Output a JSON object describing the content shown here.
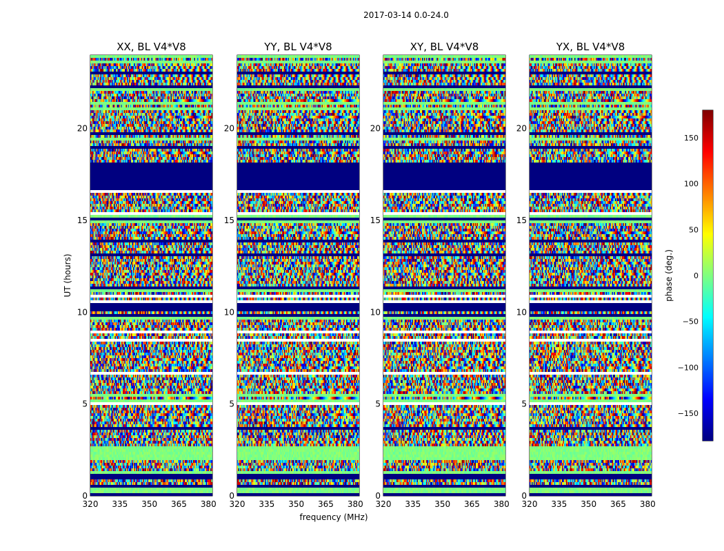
{
  "figure": {
    "suptitle": "2017-03-14 0.0-24.0",
    "xlabel": "frequency (MHz)",
    "ylabel": "UT (hours)"
  },
  "chart_data": {
    "type": "heatmap",
    "panel_titles": [
      "XX, BL V4*V8",
      "YY, BL V4*V8",
      "XY, BL V4*V8",
      "YX, BL V4*V8"
    ],
    "x_range": [
      320,
      382
    ],
    "x_ticks": [
      320,
      335,
      350,
      365,
      380
    ],
    "y_range": [
      0,
      24
    ],
    "y_ticks": [
      0,
      5,
      10,
      15,
      20
    ],
    "colorbar": {
      "label": "phase (deg.)",
      "range": [
        -180,
        180
      ],
      "ticks": [
        -150,
        -100,
        -50,
        0,
        50,
        100,
        150
      ],
      "tick_labels": [
        "−150",
        "−100",
        "−50",
        "0",
        "50",
        "100",
        "150"
      ],
      "colormap": "jet"
    },
    "flagged_bands_hours": [
      [
        16.6,
        18.1
      ],
      [
        10.1,
        10.55
      ],
      [
        17.1,
        17.8
      ]
    ],
    "bright_fringe_band_hours": [
      22.6,
      23.4
    ]
  }
}
